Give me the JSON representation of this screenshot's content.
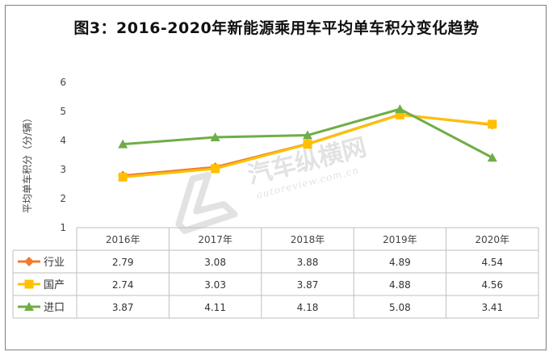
{
  "title": "图3：2016-2020年新能源乘用车平均单车积分变化趋势",
  "watermark": {
    "text_cn": "汽车纵横网",
    "text_en": "autoreview.com.cn"
  },
  "chart_data": {
    "type": "line",
    "title": "图3：2016-2020年新能源乘用车平均单车积分变化趋势",
    "ylabel": "平均单车积分（分/辆）",
    "xlabel": "",
    "categories": [
      "2016年",
      "2017年",
      "2018年",
      "2019年",
      "2020年"
    ],
    "ylim": [
      1,
      6
    ],
    "yticks": [
      1,
      2,
      3,
      4,
      5,
      6
    ],
    "grid": false,
    "legend": "data-table-left",
    "series": [
      {
        "name": "行业",
        "color": "#ED7D31",
        "marker": "diamond",
        "values": [
          2.79,
          3.08,
          3.88,
          4.89,
          4.54
        ],
        "labels": [
          "2.79",
          "3.08",
          "3.88",
          "4.89",
          "4.54"
        ]
      },
      {
        "name": "国产",
        "color": "#FFC000",
        "marker": "square",
        "values": [
          2.74,
          3.03,
          3.87,
          4.88,
          4.56
        ],
        "labels": [
          "2.74",
          "3.03",
          "3.87",
          "4.88",
          "4.56"
        ]
      },
      {
        "name": "进口",
        "color": "#70AD47",
        "marker": "triangle",
        "values": [
          3.87,
          4.11,
          4.18,
          5.08,
          3.41
        ],
        "labels": [
          "3.87",
          "4.11",
          "4.18",
          "5.08",
          "3.41"
        ]
      }
    ]
  }
}
